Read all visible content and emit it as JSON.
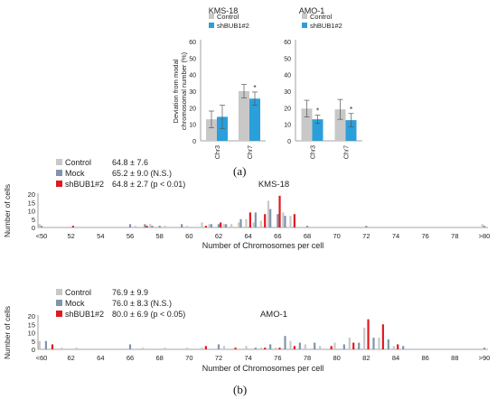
{
  "colors": {
    "control": "#c8c8c8",
    "mock": "#7f95ad",
    "shbub": "#e01a20",
    "shbub_a": "#2b9fd9",
    "axis": "#888888",
    "error": "#555555"
  },
  "panel_labels": {
    "a": "(a)",
    "b": "(b)"
  },
  "chart_data": [
    {
      "type": "bar",
      "title": "KMS-18",
      "ylabel": "Deviation from modal chromosomal number (%)",
      "categories": [
        "Chr3",
        "Chr7"
      ],
      "yticks": [
        "0",
        "10",
        "20",
        "30",
        "40",
        "50",
        "60"
      ],
      "ylim": [
        0,
        60
      ],
      "legend": [
        "Control",
        "shBUB1#2"
      ],
      "series": [
        {
          "name": "Control",
          "values": [
            13,
            30
          ],
          "errors": [
            5,
            4
          ]
        },
        {
          "name": "shBUB1#2",
          "values": [
            14.5,
            25.5
          ],
          "errors": [
            7,
            4
          ]
        }
      ],
      "annotations": [
        {
          "category": "Chr7",
          "series": "shBUB1#2",
          "text": "*"
        }
      ]
    },
    {
      "type": "bar",
      "title": "AMO-1",
      "ylabel": "",
      "categories": [
        "Chr3",
        "Chr7"
      ],
      "yticks": [
        "0",
        "10",
        "20",
        "30",
        "40",
        "50",
        "60"
      ],
      "ylim": [
        0,
        60
      ],
      "legend": [
        "Control",
        "shBUB1#2"
      ],
      "series": [
        {
          "name": "Control",
          "values": [
            19.5,
            19
          ],
          "errors": [
            5,
            6
          ]
        },
        {
          "name": "shBUB1#2",
          "values": [
            13,
            12.5
          ],
          "errors": [
            2.5,
            4
          ]
        }
      ],
      "annotations": [
        {
          "category": "Chr3",
          "series": "shBUB1#2",
          "text": "*"
        },
        {
          "category": "Chr7",
          "series": "shBUB1#2",
          "text": "*"
        }
      ]
    },
    {
      "type": "bar",
      "title": "KMS-18",
      "xlabel": "Number of Chromosomes per cell",
      "ylabel": "Number of cells",
      "ylim": [
        0,
        20
      ],
      "yticks": [
        "0",
        "5",
        "10",
        "15",
        "20"
      ],
      "x_range": [
        50,
        80
      ],
      "xticks": [
        "<50",
        "52",
        "54",
        "56",
        "58",
        "60",
        "62",
        "64",
        "66",
        "68",
        "70",
        "72",
        "74",
        "76",
        "78",
        ">80"
      ],
      "legend": [
        {
          "name": "Control",
          "stat": "64.8 ± 7.6"
        },
        {
          "name": "Mock",
          "stat": "65.2 ± 9.0 (N.S.)"
        },
        {
          "name": "shBUB1#2",
          "stat": "64.8 ± 2.7 (p < 0.01)"
        }
      ],
      "series": [
        {
          "name": "Control",
          "points": [
            [
              50,
              2
            ],
            [
              56.5,
              1
            ],
            [
              57.5,
              2
            ],
            [
              58.5,
              1
            ],
            [
              60,
              1
            ],
            [
              61,
              3
            ],
            [
              61.5,
              2
            ],
            [
              62.5,
              2
            ],
            [
              63,
              2
            ],
            [
              63.5,
              3
            ],
            [
              64,
              5
            ],
            [
              64.5,
              3
            ],
            [
              65,
              4
            ],
            [
              65.5,
              16
            ],
            [
              66.5,
              9
            ],
            [
              67,
              7
            ],
            [
              80,
              2
            ]
          ]
        },
        {
          "name": "Mock",
          "points": [
            [
              50,
              1
            ],
            [
              56,
              2
            ],
            [
              57,
              2
            ],
            [
              57.5,
              1
            ],
            [
              58,
              1
            ],
            [
              59.5,
              2
            ],
            [
              61.5,
              2
            ],
            [
              62,
              2
            ],
            [
              62.5,
              2
            ],
            [
              63.5,
              5
            ],
            [
              64.5,
              9
            ],
            [
              65.5,
              11
            ],
            [
              66,
              8
            ],
            [
              66.5,
              7
            ],
            [
              68,
              1
            ],
            [
              72,
              1
            ],
            [
              80,
              1
            ]
          ]
        },
        {
          "name": "shBUB1#2",
          "points": [
            [
              52,
              1
            ],
            [
              57,
              1
            ],
            [
              61,
              1
            ],
            [
              62,
              3
            ],
            [
              64,
              9
            ],
            [
              65,
              8
            ],
            [
              66,
              19
            ],
            [
              67,
              8
            ]
          ]
        }
      ]
    },
    {
      "type": "bar",
      "title": "AMO-1",
      "xlabel": "Number of Chromosomes per cell",
      "ylabel": "Number of cells",
      "ylim": [
        0,
        20
      ],
      "yticks": [
        "0",
        "5",
        "10",
        "15",
        "20"
      ],
      "x_range": [
        60,
        90
      ],
      "xticks": [
        "<60",
        "62",
        "64",
        "66",
        "68",
        "70",
        "72",
        "74",
        "76",
        "78",
        "80",
        "82",
        "84",
        "86",
        "88",
        ">90"
      ],
      "legend": [
        {
          "name": "Control",
          "stat": "76.9 ± 9.9"
        },
        {
          "name": "Mock",
          "stat": "76.0 ± 8.3 (N.S.)"
        },
        {
          "name": "shBUB1#2",
          "stat": "80.0 ± 6.9 (p < 0.05)"
        }
      ],
      "series": [
        {
          "name": "Control",
          "points": [
            [
              60,
              5
            ],
            [
              61.5,
              1
            ],
            [
              62.5,
              1
            ],
            [
              67,
              1
            ],
            [
              68.5,
              1
            ],
            [
              70,
              1
            ],
            [
              71,
              1
            ],
            [
              72.5,
              2
            ],
            [
              74,
              2
            ],
            [
              75,
              1
            ],
            [
              76,
              1
            ],
            [
              77,
              5
            ],
            [
              78,
              3
            ],
            [
              79,
              2
            ],
            [
              80,
              4
            ],
            [
              81,
              7
            ],
            [
              82,
              13
            ],
            [
              83,
              7
            ],
            [
              84,
              2
            ]
          ]
        },
        {
          "name": "Mock",
          "points": [
            [
              60.3,
              5
            ],
            [
              66,
              3
            ],
            [
              72,
              3
            ],
            [
              74.5,
              1
            ],
            [
              75.5,
              3
            ],
            [
              76.5,
              8
            ],
            [
              77.5,
              4
            ],
            [
              78.5,
              4
            ],
            [
              80.5,
              3
            ],
            [
              81.5,
              4
            ],
            [
              82.5,
              7
            ],
            [
              83.5,
              6
            ],
            [
              84.5,
              2
            ],
            [
              90,
              1
            ]
          ]
        },
        {
          "name": "shBUB1#2",
          "points": [
            [
              60.6,
              3
            ],
            [
              71,
              2
            ],
            [
              73,
              1
            ],
            [
              75,
              1
            ],
            [
              76,
              1
            ],
            [
              77,
              2
            ],
            [
              79.5,
              2
            ],
            [
              81,
              4
            ],
            [
              82,
              18
            ],
            [
              83,
              15
            ],
            [
              84,
              3
            ]
          ]
        }
      ]
    }
  ]
}
